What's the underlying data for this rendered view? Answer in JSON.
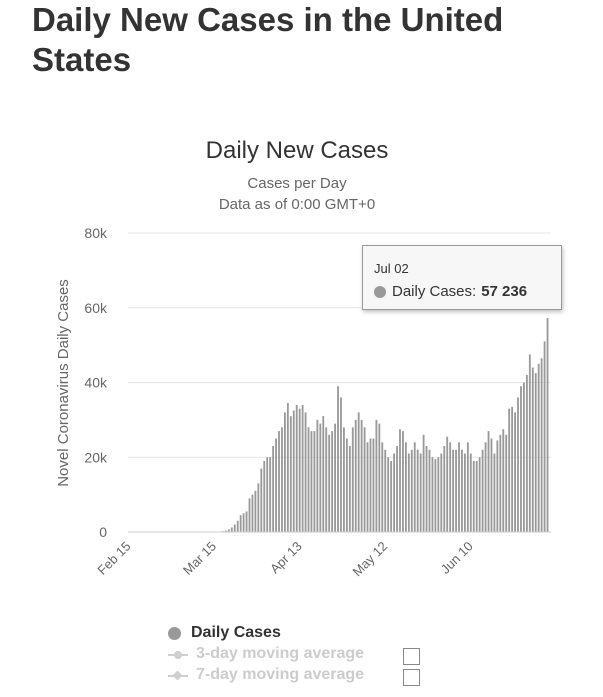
{
  "page": {
    "title": "Daily New Cases in the United States"
  },
  "chart_data": {
    "type": "bar",
    "title": "Daily New Cases",
    "subtitle": "Cases per Day",
    "subtitle2": "Data as of 0:00 GMT+0",
    "ylabel": "Novel Coronavirus Daily Cases",
    "ylim": [
      0,
      80000
    ],
    "yticks": [
      {
        "value": 0,
        "label": "0"
      },
      {
        "value": 20000,
        "label": "20k"
      },
      {
        "value": 40000,
        "label": "40k"
      },
      {
        "value": 60000,
        "label": "60k"
      },
      {
        "value": 80000,
        "label": "80k"
      }
    ],
    "x_start": "Feb 15",
    "x_end": "Jul 02",
    "xticks": [
      "Feb 15",
      "Mar 15",
      "Apr 13",
      "May 12",
      "Jun 10"
    ],
    "bar_color": "#999999",
    "grid": true,
    "series": [
      {
        "name": "Daily Cases",
        "values": [
          0,
          0,
          0,
          0,
          0,
          0,
          0,
          0,
          0,
          0,
          0,
          0,
          0,
          0,
          0,
          0,
          0,
          0,
          0,
          0,
          0,
          0,
          0,
          0,
          0,
          0,
          0,
          0,
          0,
          0,
          100,
          200,
          400,
          700,
          1200,
          2000,
          3000,
          4500,
          5000,
          5500,
          9000,
          10000,
          11000,
          13000,
          17000,
          19000,
          20000,
          20000,
          23000,
          25000,
          27000,
          28000,
          32000,
          34500,
          31000,
          32500,
          34000,
          33000,
          34000,
          32000,
          28000,
          27000,
          27000,
          30000,
          29000,
          31000,
          28000,
          26000,
          27000,
          29000,
          39000,
          36000,
          28000,
          25000,
          23000,
          28000,
          30000,
          32000,
          30000,
          28000,
          24000,
          25000,
          25000,
          30000,
          29000,
          24000,
          22000,
          20000,
          19000,
          21000,
          23000,
          27500,
          27000,
          24000,
          21000,
          22000,
          24000,
          22000,
          21000,
          26000,
          23000,
          22000,
          20000,
          19500,
          20000,
          21000,
          23000,
          25500,
          24000,
          22000,
          22000,
          24000,
          22000,
          21000,
          24000,
          21000,
          19000,
          19000,
          20000,
          22000,
          24000,
          27000,
          25000,
          21000,
          24500,
          26000,
          27500,
          26000,
          33000,
          33500,
          32000,
          36000,
          39000,
          40000,
          42000,
          47500,
          44000,
          42500,
          45000,
          46500,
          51000,
          57236
        ]
      }
    ],
    "tooltip": {
      "date": "Jul 02",
      "series": "Daily Cases",
      "value": "57 236"
    }
  },
  "legend": {
    "items": [
      {
        "label": "Daily Cases",
        "active": true
      },
      {
        "label": "3-day moving average",
        "active": false
      },
      {
        "label": "7-day moving average",
        "active": false
      }
    ],
    "active_color": "#333333",
    "inactive_color": "#cccccc"
  }
}
